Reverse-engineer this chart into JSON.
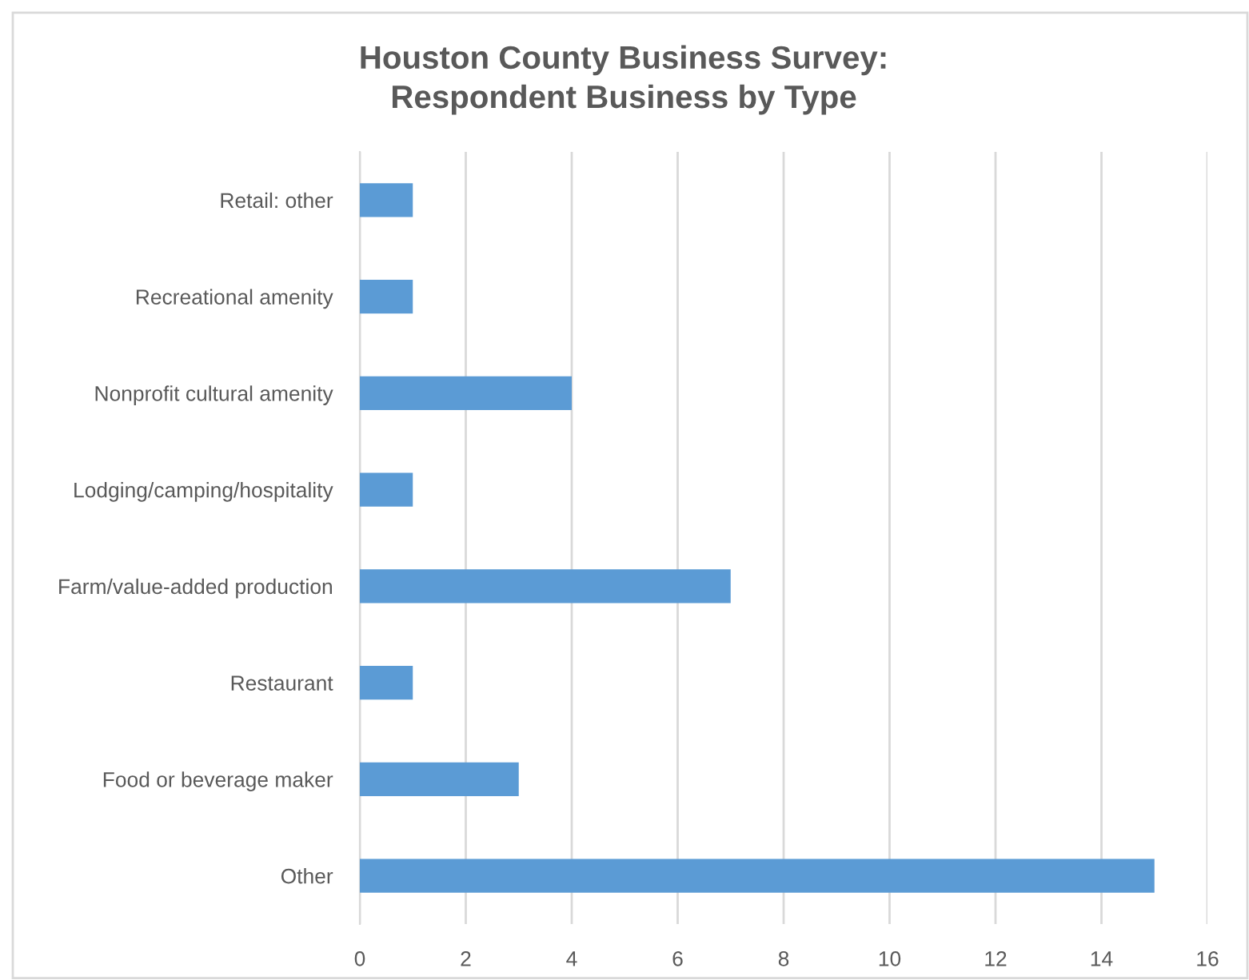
{
  "chart_data": {
    "type": "bar",
    "orientation": "horizontal",
    "title": "Houston County Business Survey:\nRespondent Business by Type",
    "categories": [
      "Retail: other",
      "Recreational amenity",
      "Nonprofit cultural amenity",
      "Lodging/camping/hospitality",
      "Farm/value-added production",
      "Restaurant",
      "Food or beverage maker",
      "Other"
    ],
    "values": [
      1,
      1,
      4,
      1,
      7,
      1,
      3,
      15
    ],
    "color": "#5b9bd5",
    "xlim": [
      0,
      16
    ],
    "xticks": [
      0,
      2,
      4,
      6,
      8,
      10,
      12,
      14,
      16
    ],
    "grid": "x",
    "legend": false
  }
}
